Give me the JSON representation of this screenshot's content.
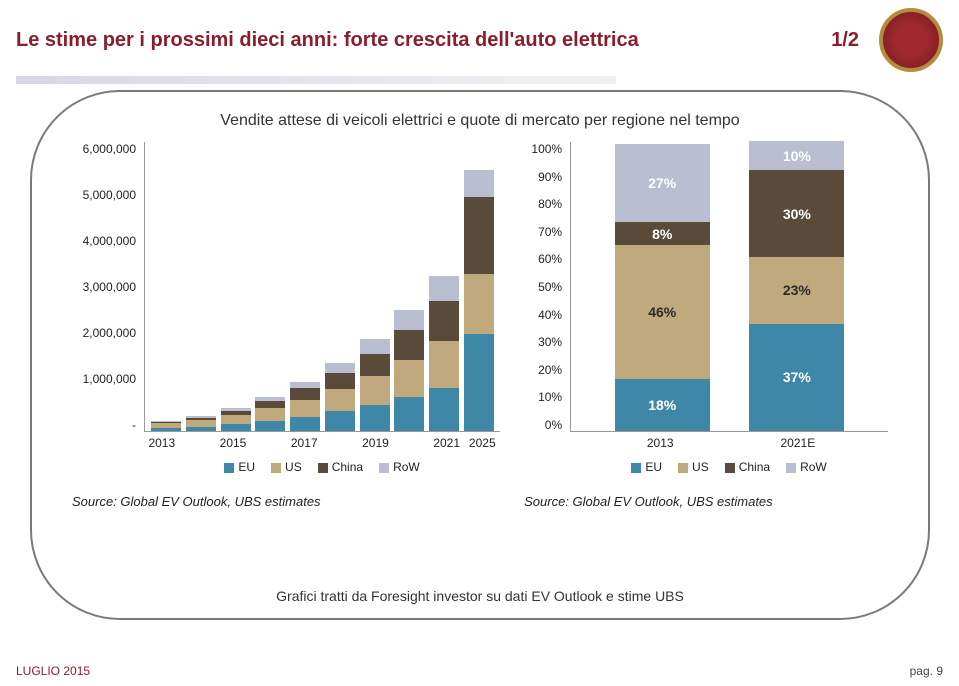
{
  "header": {
    "title": "Le stime per i prossimi dieci anni: forte crescita dell'auto elettrica",
    "page_indicator": "1/2",
    "logo_alt": "MPS"
  },
  "subtitle": "Vendite attese di veicoli elettrici e quote di mercato per regione nel tempo",
  "colors": {
    "eu": "#3f87a6",
    "us": "#c1a97e",
    "china": "#5a4a3a",
    "row": "#b9bfd0",
    "title": "#8b1d2c",
    "border": "#7a7a7a"
  },
  "chart_left": {
    "type": "stacked-bar",
    "y_ticks": [
      "6,000,000",
      "5,000,000",
      "4,000,000",
      "3,000,000",
      "2,000,000",
      "1,000,000",
      "-"
    ],
    "y_max": 6000000,
    "x_labels": [
      "2013",
      "2015",
      "2017",
      "2019",
      "2021",
      "2025"
    ],
    "bars": [
      {
        "year": "2013",
        "eu": 60000,
        "us": 100000,
        "china": 30000,
        "row": 20000
      },
      {
        "year": "2014",
        "eu": 90000,
        "us": 130000,
        "china": 55000,
        "row": 30000
      },
      {
        "year": "2015",
        "eu": 140000,
        "us": 190000,
        "china": 90000,
        "row": 55000
      },
      {
        "year": "2016",
        "eu": 210000,
        "us": 260000,
        "china": 150000,
        "row": 90000
      },
      {
        "year": "2017",
        "eu": 300000,
        "us": 350000,
        "china": 230000,
        "row": 140000
      },
      {
        "year": "2018",
        "eu": 410000,
        "us": 460000,
        "china": 330000,
        "row": 210000
      },
      {
        "year": "2019",
        "eu": 540000,
        "us": 600000,
        "china": 460000,
        "row": 300000
      },
      {
        "year": "2020",
        "eu": 700000,
        "us": 760000,
        "china": 630000,
        "row": 410000
      },
      {
        "year": "2021",
        "eu": 900000,
        "us": 960000,
        "china": 820000,
        "row": 520000
      },
      {
        "year": "2025",
        "eu": 2000000,
        "us": 1250000,
        "china": 1600000,
        "row": 550000
      }
    ],
    "legend": [
      "EU",
      "US",
      "China",
      "RoW"
    ],
    "source": "Source: Global EV Outlook, UBS estimates"
  },
  "chart_right": {
    "type": "stacked-bar-percent",
    "y_ticks": [
      "100%",
      "90%",
      "80%",
      "70%",
      "60%",
      "50%",
      "40%",
      "30%",
      "20%",
      "10%",
      "0%"
    ],
    "x_labels": [
      "2013",
      "2021E"
    ],
    "bars": [
      {
        "label": "2013",
        "eu": 18,
        "us": 46,
        "china": 8,
        "row": 27,
        "show": {
          "eu": "18%",
          "us": "46%",
          "china": "8%",
          "row": "27%"
        }
      },
      {
        "label": "2021E",
        "eu": 37,
        "us": 23,
        "china": 30,
        "row": 10,
        "show": {
          "eu": "37%",
          "us": "23%",
          "china": "30%",
          "row": "10%"
        }
      }
    ],
    "legend": [
      "EU",
      "US",
      "China",
      "RoW"
    ],
    "source": "Source: Global EV Outlook, UBS estimates"
  },
  "caption": "Grafici tratti da Foresight investor su dati EV Outlook e stime UBS",
  "footer": {
    "left": "LUGLIO 2015",
    "right": "pag. 9"
  }
}
